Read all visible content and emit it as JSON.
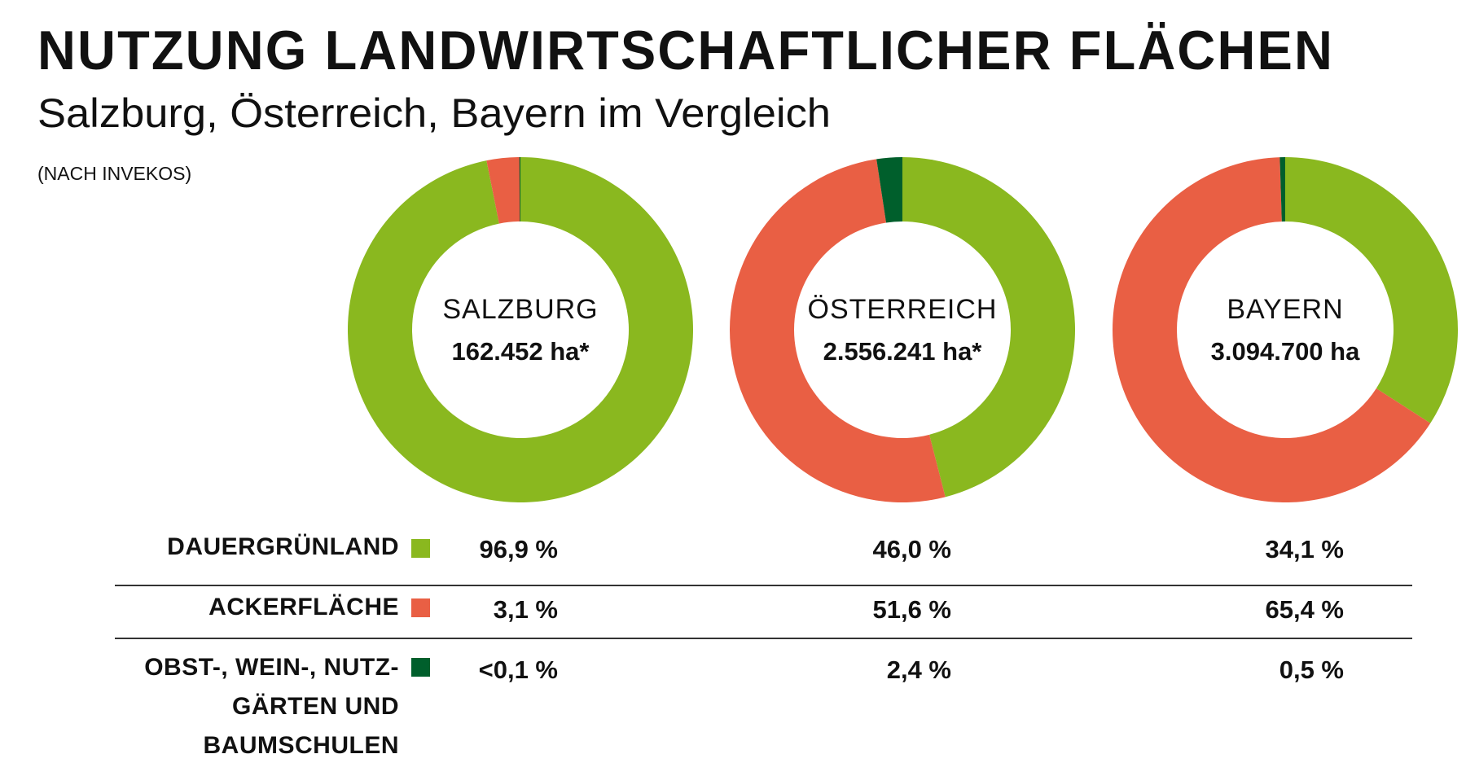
{
  "header": {
    "title": "NUTZUNG LANDWIRTSCHAFTLICHER FLÄCHEN",
    "subtitle": "Salzburg, Österreich, Bayern im Vergleich",
    "note": "(NACH INVEKOS)"
  },
  "colors": {
    "dauergruenland": "#8ab81f",
    "ackerflaeche": "#e95f44",
    "obst_wein": "#005f2c"
  },
  "chart_data": {
    "type": "pie",
    "subtype": "donut",
    "title": "NUTZUNG LANDWIRTSCHAFTLICHER FLÄCHEN",
    "subtitle": "Salzburg, Österreich, Bayern im Vergleich",
    "unit": "%",
    "categories": [
      "DAUERGRÜNLAND",
      "ACKERFLÄCHE",
      "OBST-, WEIN-, NUTZGÄRTEN UND BAUMSCHULEN"
    ],
    "series": [
      {
        "name": "SALZBURG",
        "total": "162.452 ha*",
        "values": [
          96.9,
          3.1,
          0.05
        ],
        "labels": [
          "96,9 %",
          "3,1 %",
          "<0,1 %"
        ]
      },
      {
        "name": "ÖSTERREICH",
        "total": "2.556.241 ha*",
        "values": [
          46.0,
          51.6,
          2.4
        ],
        "labels": [
          "46,0 %",
          "51,6 %",
          "2,4 %"
        ]
      },
      {
        "name": "BAYERN",
        "total": "3.094.700 ha",
        "values": [
          34.1,
          65.4,
          0.5
        ],
        "labels": [
          "34,1 %",
          "65,4 %",
          "0,5 %"
        ]
      }
    ],
    "start_angle": "top",
    "direction": "clockwise"
  },
  "legend": {
    "rows": [
      {
        "lines": [
          "DAUERGRÜNLAND"
        ]
      },
      {
        "lines": [
          "ACKERFLÄCHE"
        ]
      },
      {
        "lines": [
          "OBST-, WEIN-, NUTZ-",
          "GÄRTEN UND",
          "BAUMSCHULEN"
        ]
      }
    ]
  }
}
